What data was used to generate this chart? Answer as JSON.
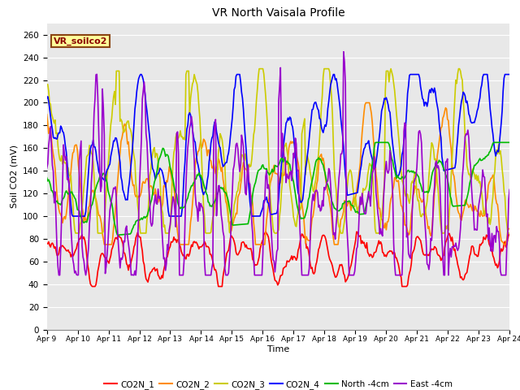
{
  "title": "VR North Vaisala Profile",
  "xlabel": "Time",
  "ylabel": "Soil CO2 (mV)",
  "ylim": [
    0,
    270
  ],
  "yticks": [
    0,
    20,
    40,
    60,
    80,
    100,
    120,
    140,
    160,
    180,
    200,
    220,
    240,
    260
  ],
  "x_labels": [
    "Apr 9",
    "Apr 10",
    "Apr 11",
    "Apr 12",
    "Apr 13",
    "Apr 14",
    "Apr 15",
    "Apr 16",
    "Apr 17",
    "Apr 18",
    "Apr 19",
    "Apr 20",
    "Apr 21",
    "Apr 22",
    "Apr 23",
    "Apr 24"
  ],
  "annotation_text": "VR_soilco2",
  "annotation_color": "#8B0000",
  "annotation_bg": "#FFFF99",
  "annotation_border": "#8B4513",
  "plot_bg": "#E8E8E8",
  "grid_color": "#FFFFFF",
  "series": [
    {
      "label": "CO2N_1",
      "color": "#FF0000"
    },
    {
      "label": "CO2N_2",
      "color": "#FF8C00"
    },
    {
      "label": "CO2N_3",
      "color": "#CCCC00"
    },
    {
      "label": "CO2N_4",
      "color": "#0000FF"
    },
    {
      "label": "North -4cm",
      "color": "#00BB00"
    },
    {
      "label": "East -4cm",
      "color": "#9900CC"
    }
  ],
  "n_points": 500,
  "seed": 42
}
